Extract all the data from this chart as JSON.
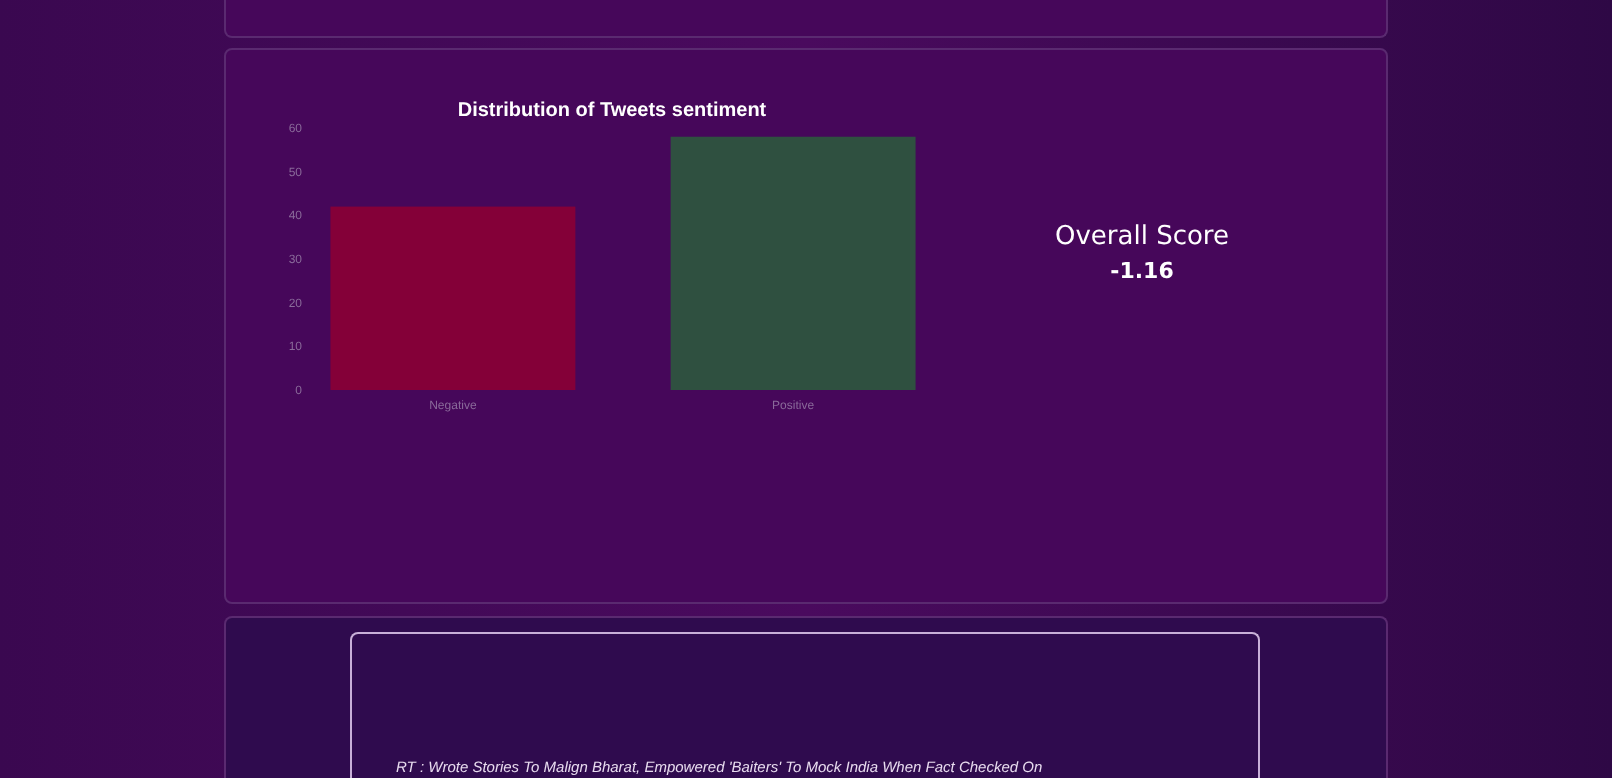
{
  "chart_data": {
    "type": "bar",
    "title": "Distribution of Tweets sentiment",
    "categories": [
      "Negative",
      "Positive"
    ],
    "values": [
      42,
      58
    ],
    "colors": [
      "#840038",
      "#2f5040"
    ],
    "ylim": [
      0,
      60
    ],
    "yticks": [
      0,
      10,
      20,
      30,
      40,
      50,
      60
    ],
    "grid": false,
    "annotations": [
      "Overall Score",
      "-1.16",
      "RT : Wrote Stories To Malign Bharat, Empowered 'Baiters' To Mock India When Fact Checked On"
    ]
  }
}
